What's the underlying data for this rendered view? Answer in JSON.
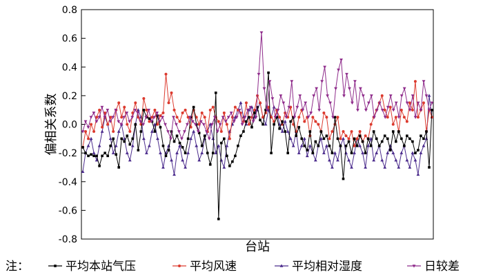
{
  "chart_data": {
    "type": "line",
    "xlabel": "台站",
    "ylabel": "偏相关系数",
    "ylim": [
      -0.8,
      0.8
    ],
    "yticks": [
      -0.8,
      -0.6,
      -0.4,
      -0.2,
      0.0,
      0.2,
      0.4,
      0.6,
      0.8
    ],
    "ytick_labels": [
      "-0.8",
      "-0.6",
      "-0.4",
      "-0.2",
      "0.0",
      "0.2",
      "0.4",
      "0.6",
      "0.8"
    ],
    "grid": false,
    "legend_position": "bottom",
    "legend_prefix": "注：",
    "series": [
      {
        "name": "平均本站气压",
        "color": "#000000",
        "marker": "square",
        "values": [
          -0.16,
          -0.2,
          -0.22,
          -0.21,
          -0.22,
          -0.22,
          -0.29,
          -0.22,
          -0.2,
          -0.22,
          -0.15,
          -0.1,
          -0.21,
          -0.3,
          -0.1,
          -0.12,
          -0.08,
          -0.14,
          -0.1,
          0.0,
          -0.18,
          -0.05,
          0.1,
          0.05,
          0.04,
          0.02,
          -0.05,
          0.06,
          -0.02,
          -0.15,
          -0.22,
          -0.18,
          -0.05,
          -0.12,
          -0.08,
          -0.13,
          -0.16,
          -0.2,
          -0.1,
          0.05,
          0.12,
          0.0,
          -0.06,
          -0.15,
          -0.08,
          -0.2,
          -0.28,
          -0.2,
          0.22,
          -0.66,
          -0.13,
          -0.1,
          -0.22,
          -0.29,
          -0.26,
          -0.22,
          -0.15,
          -0.08,
          -0.05,
          0.02,
          0.05,
          -0.02,
          0.08,
          0.12,
          0.03,
          0.0,
          0.1,
          0.36,
          -0.2,
          0.0,
          0.05,
          -0.03,
          0.02,
          -0.05,
          -0.2,
          0.02,
          0.05,
          -0.08,
          -0.02,
          -0.1,
          -0.15,
          -0.18,
          -0.05,
          -0.2,
          -0.12,
          -0.15,
          -0.05,
          -0.1,
          -0.08,
          -0.15,
          -0.2,
          0.05,
          -0.1,
          -0.15,
          -0.38,
          -0.15,
          -0.12,
          -0.2,
          -0.1,
          -0.15,
          -0.08,
          -0.12,
          -0.2,
          -0.1,
          -0.15,
          -0.05,
          -0.1,
          -0.15,
          -0.12,
          -0.08,
          -0.1,
          -0.18,
          -0.05,
          -0.12,
          -0.05,
          -0.1,
          -0.15,
          -0.08,
          -0.1,
          -0.12,
          -0.2,
          -0.18,
          -0.08,
          -0.1,
          -0.05,
          -0.3,
          0.1
        ]
      },
      {
        "name": "平均风速",
        "color": "#dc3a2e",
        "marker": "circle",
        "values": [
          -0.16,
          -0.05,
          -0.1,
          0.0,
          -0.05,
          0.05,
          0.1,
          -0.02,
          0.08,
          0.0,
          0.05,
          -0.05,
          0.1,
          0.15,
          0.05,
          0.12,
          0.0,
          -0.05,
          0.08,
          0.15,
          0.05,
          0.0,
          0.18,
          0.1,
          0.02,
          0.05,
          0.1,
          0.0,
          0.06,
          0.08,
          0.35,
          0.15,
          0.22,
          0.1,
          0.05,
          0.02,
          0.08,
          0.1,
          0.05,
          -0.02,
          0.1,
          0.05,
          0.0,
          0.08,
          0.05,
          -0.05,
          0.1,
          0.12,
          0.05,
          0.02,
          -0.05,
          0.08,
          0.0,
          -0.1,
          0.05,
          0.12,
          0.1,
          0.08,
          0.02,
          0.15,
          0.0,
          0.05,
          0.1,
          0.2,
          0.15,
          0.05,
          0.08,
          0.12,
          0.05,
          0.02,
          0.1,
          0.05,
          0.0,
          0.08,
          0.05,
          0.12,
          0.0,
          -0.05,
          0.05,
          0.1,
          0.02,
          0.05,
          -0.08,
          0.05,
          0.02,
          0.0,
          -0.05,
          0.08,
          0.05,
          -0.1,
          -0.05,
          0.0,
          0.05,
          -0.1,
          -0.05,
          -0.08,
          -0.1,
          -0.05,
          -0.15,
          -0.1,
          -0.05,
          -0.12,
          -0.08,
          -0.1,
          0.0,
          0.05,
          0.1,
          0.15,
          0.2,
          0.1,
          0.05,
          0.12,
          0.0,
          0.05,
          -0.05,
          0.1,
          0.05,
          0.02,
          0.15,
          0.1,
          0.3,
          0.05,
          0.1,
          0.15,
          -0.05,
          0.1,
          0.05
        ]
      },
      {
        "name": "平均相对湿度",
        "color": "#4a2a8c",
        "marker": "triangle",
        "values": [
          -0.33,
          -0.2,
          -0.15,
          -0.1,
          -0.2,
          -0.25,
          -0.15,
          -0.05,
          0.05,
          0.0,
          -0.1,
          -0.2,
          -0.15,
          -0.05,
          0.0,
          -0.1,
          -0.2,
          -0.25,
          -0.15,
          0.0,
          0.1,
          0.05,
          -0.1,
          -0.2,
          -0.15,
          -0.05,
          0.0,
          -0.1,
          -0.2,
          -0.3,
          -0.2,
          -0.15,
          -0.25,
          -0.35,
          -0.2,
          -0.15,
          -0.25,
          -0.3,
          -0.2,
          -0.1,
          -0.05,
          -0.15,
          -0.25,
          -0.2,
          -0.1,
          -0.05,
          0.0,
          -0.1,
          -0.2,
          -0.15,
          -0.25,
          -0.3,
          -0.15,
          -0.05,
          0.0,
          0.05,
          0.1,
          0.15,
          0.05,
          0.0,
          0.1,
          0.12,
          0.05,
          0.1,
          0.15,
          0.05,
          0.0,
          0.1,
          0.05,
          0.12,
          0.1,
          0.0,
          -0.05,
          0.02,
          -0.05,
          -0.1,
          -0.15,
          -0.05,
          -0.2,
          -0.15,
          -0.1,
          -0.22,
          -0.15,
          -0.2,
          -0.25,
          -0.15,
          -0.1,
          -0.2,
          -0.15,
          -0.25,
          -0.3,
          -0.2,
          -0.25,
          -0.15,
          -0.1,
          -0.2,
          -0.25,
          -0.3,
          -0.2,
          -0.1,
          -0.15,
          -0.2,
          -0.3,
          -0.15,
          -0.1,
          -0.25,
          -0.2,
          -0.15,
          -0.25,
          -0.3,
          -0.2,
          -0.15,
          -0.2,
          -0.25,
          -0.3,
          -0.2,
          -0.15,
          -0.25,
          -0.3,
          -0.2,
          -0.25,
          -0.35,
          -0.2,
          -0.15,
          -0.1,
          0.2,
          0.05
        ]
      },
      {
        "name": "日较差",
        "color": "#8e2a8a",
        "marker": "triangle-down",
        "values": [
          -0.05,
          0.02,
          -0.02,
          0.05,
          0.08,
          0.02,
          0.05,
          0.12,
          0.05,
          0.1,
          0.02,
          0.05,
          0.1,
          0.02,
          0.0,
          0.05,
          0.08,
          0.02,
          0.05,
          0.1,
          0.08,
          0.02,
          0.0,
          0.05,
          0.1,
          0.02,
          0.05,
          0.08,
          0.02,
          0.05,
          0.0,
          -0.05,
          -0.1,
          0.05,
          0.0,
          -0.05,
          -0.1,
          -0.05,
          0.0,
          0.05,
          0.02,
          0.0,
          -0.05,
          0.02,
          0.0,
          -0.05,
          -0.1,
          0.0,
          0.05,
          -0.05,
          0.0,
          0.05,
          0.02,
          0.05,
          0.08,
          0.02,
          0.05,
          0.1,
          0.0,
          0.05,
          0.1,
          0.12,
          0.02,
          0.05,
          0.35,
          0.64,
          0.25,
          0.1,
          0.3,
          0.18,
          0.05,
          0.1,
          0.2,
          0.15,
          0.05,
          0.12,
          0.3,
          0.05,
          0.12,
          0.2,
          0.1,
          0.15,
          0.05,
          0.08,
          0.2,
          0.25,
          0.1,
          0.3,
          0.4,
          0.2,
          0.15,
          0.05,
          0.25,
          0.38,
          0.45,
          0.2,
          0.35,
          0.25,
          0.15,
          0.3,
          0.1,
          0.25,
          0.2,
          0.1,
          0.15,
          0.2,
          0.05,
          0.1,
          0.15,
          0.1,
          0.05,
          0.12,
          0.2,
          0.1,
          0.15,
          0.05,
          0.2,
          0.25,
          0.15,
          0.1,
          0.2,
          0.05,
          0.15,
          0.1,
          0.3,
          0.2,
          0.1,
          0.15
        ]
      }
    ]
  }
}
